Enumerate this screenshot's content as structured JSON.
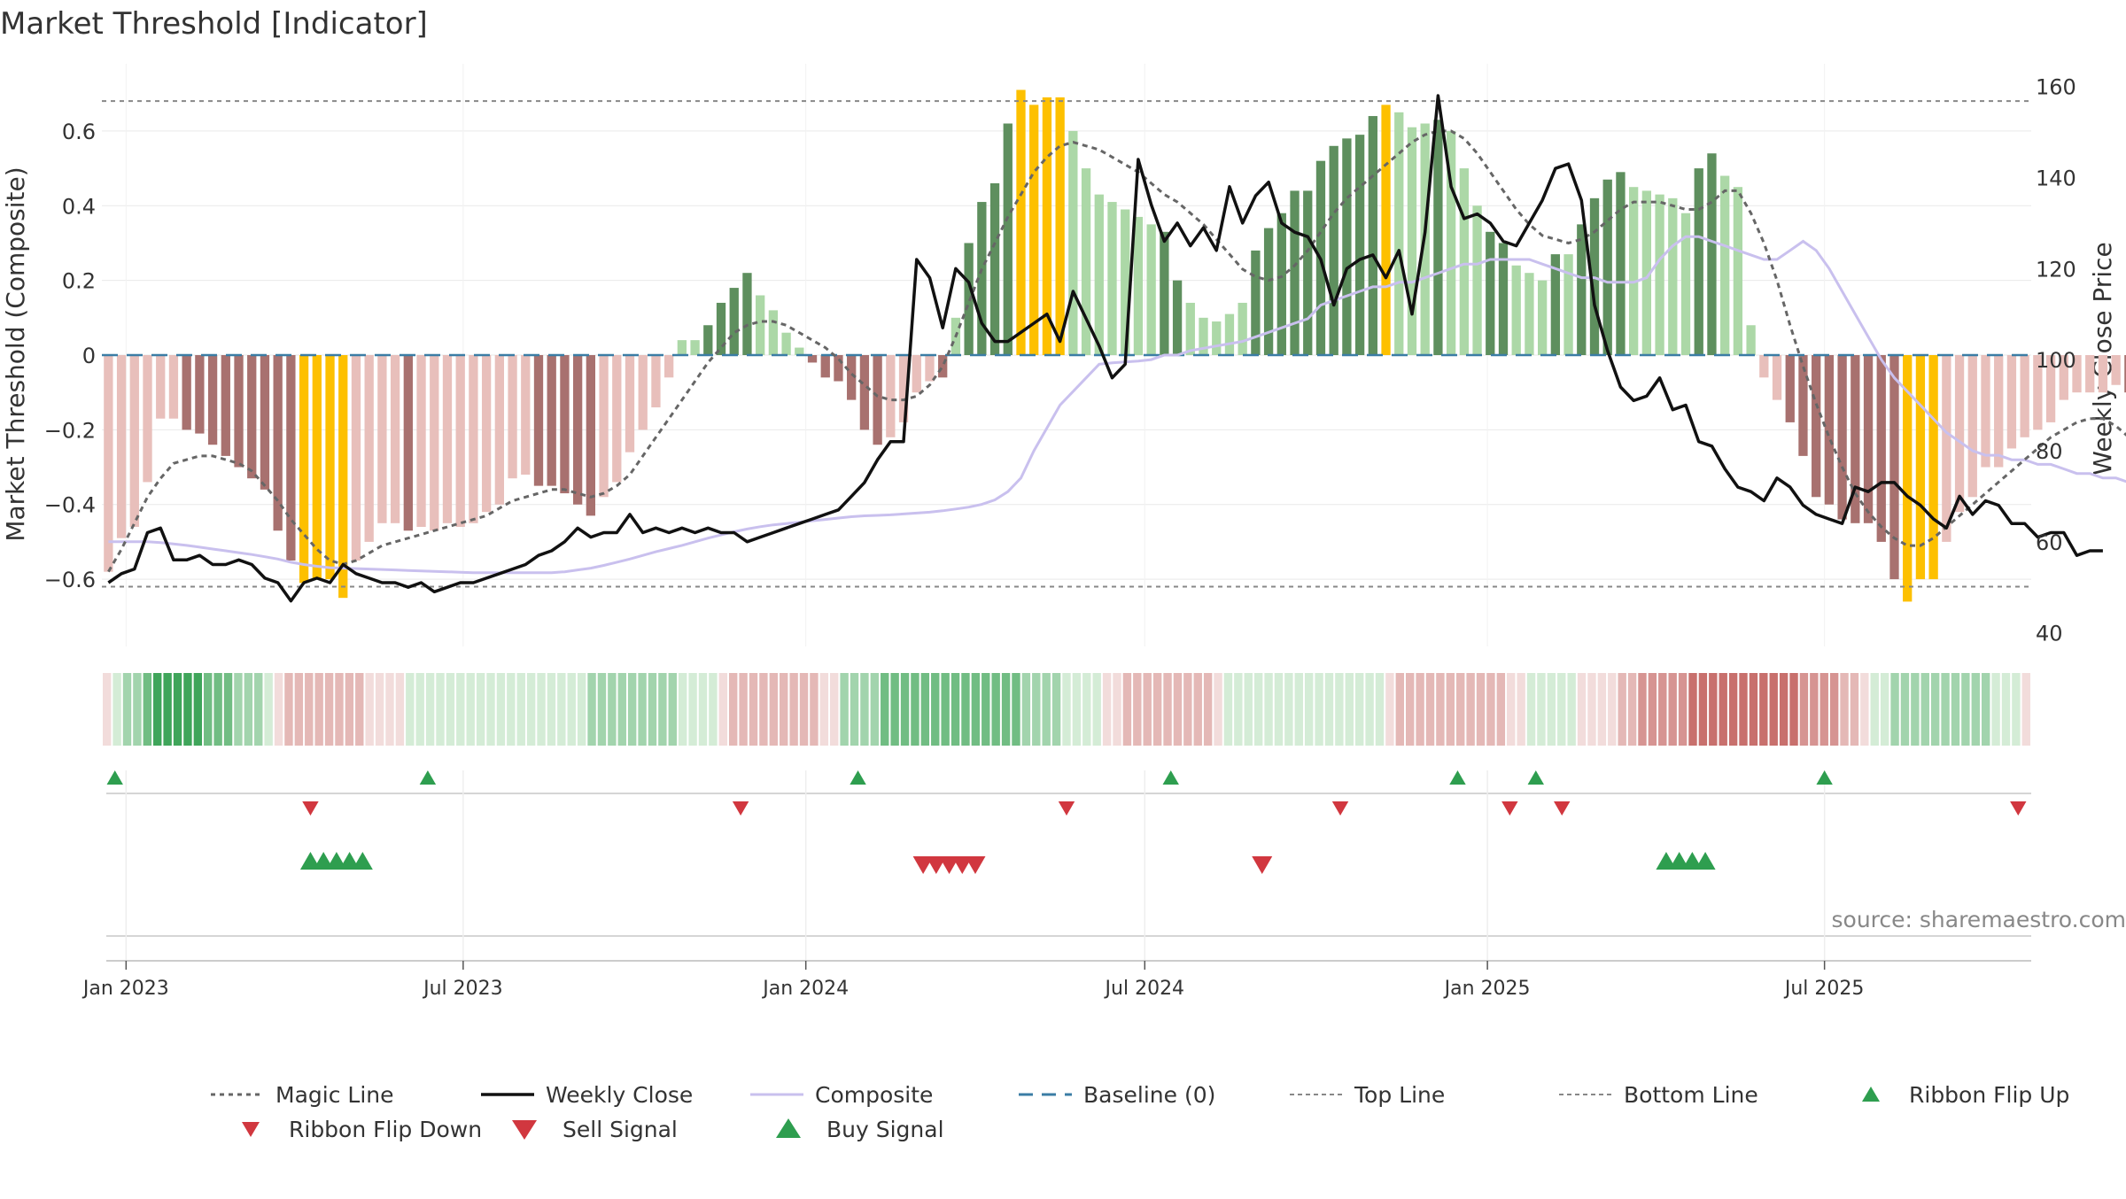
{
  "chart_data": {
    "type": "bar",
    "title": "Market Threshold [Indicator]",
    "ylabel": "Market Threshold (Composite)",
    "y2label": "Weekly Close Price",
    "source": "source: sharemaestro.com",
    "ylim": [
      -0.78,
      0.78
    ],
    "y2lim": [
      37,
      165
    ],
    "x_range": [
      "2022-12-19",
      "2025-10-20"
    ],
    "yticks": [
      {
        "v": 0.6,
        "label": "0.6"
      },
      {
        "v": 0.4,
        "label": "0.4"
      },
      {
        "v": 0.2,
        "label": "0.2"
      },
      {
        "v": 0,
        "label": "0"
      },
      {
        "v": -0.2,
        "label": "−0.2"
      },
      {
        "v": -0.4,
        "label": "−0.4"
      },
      {
        "v": -0.6,
        "label": "−0.6"
      }
    ],
    "y2ticks": [
      {
        "v": 160,
        "label": "160"
      },
      {
        "v": 140,
        "label": "140"
      },
      {
        "v": 120,
        "label": "120"
      },
      {
        "v": 100,
        "label": "100"
      },
      {
        "v": 80,
        "label": "80"
      },
      {
        "v": 60,
        "label": "60"
      },
      {
        "v": 40,
        "label": "40"
      }
    ],
    "xticks": [
      {
        "date": "2023-01-01",
        "label": "Jan 2023"
      },
      {
        "date": "2023-07-01",
        "label": "Jul 2023"
      },
      {
        "date": "2024-01-01",
        "label": "Jan 2024"
      },
      {
        "date": "2024-07-01",
        "label": "Jul 2024"
      },
      {
        "date": "2025-01-01",
        "label": "Jan 2025"
      },
      {
        "date": "2025-07-01",
        "label": "Jul 2025"
      }
    ],
    "top_line": 0.68,
    "bottom_line": -0.62,
    "baseline": 0,
    "colors": {
      "strong_positive": "#5e8f5e",
      "weak_positive": "#acd8a7",
      "strong_negative": "#a8716f",
      "weak_negative": "#e8bfbb",
      "extreme": "#fdc000",
      "weekly_close": "#111111",
      "composite": "#c9c0ee",
      "magic_line": "#666666",
      "baseline": "#3b7da5",
      "ref_line": "#888888",
      "buy": "#2e9e4f",
      "sell": "#d1373f",
      "ribbon_up": "#2e9e4f",
      "ribbon_down": "#d1373f",
      "ribbon_pos_dark": "#3fa55a",
      "ribbon_pos_light": "#d4ecd6",
      "ribbon_neg_dark": "#c8706d",
      "ribbon_neg_light": "#f2dcdb"
    },
    "bar_values": [
      -0.58,
      -0.49,
      -0.46,
      -0.34,
      -0.17,
      -0.17,
      -0.2,
      -0.21,
      -0.24,
      -0.27,
      -0.3,
      -0.33,
      -0.36,
      -0.47,
      -0.55,
      -0.61,
      -0.6,
      -0.6,
      -0.65,
      -0.55,
      -0.5,
      -0.45,
      -0.45,
      -0.47,
      -0.46,
      -0.47,
      -0.45,
      -0.46,
      -0.45,
      -0.42,
      -0.4,
      -0.33,
      -0.32,
      -0.35,
      -0.35,
      -0.37,
      -0.4,
      -0.43,
      -0.38,
      -0.34,
      -0.26,
      -0.2,
      -0.14,
      -0.06,
      0.04,
      0.04,
      0.08,
      0.14,
      0.18,
      0.22,
      0.16,
      0.12,
      0.06,
      0.02,
      -0.02,
      -0.06,
      -0.07,
      -0.12,
      -0.2,
      -0.24,
      -0.22,
      -0.18,
      -0.1,
      -0.07,
      -0.06,
      0.1,
      0.3,
      0.41,
      0.46,
      0.62,
      0.71,
      0.67,
      0.69,
      0.69,
      0.6,
      0.5,
      0.43,
      0.41,
      0.39,
      0.37,
      0.35,
      0.33,
      0.2,
      0.14,
      0.1,
      0.09,
      0.11,
      0.14,
      0.28,
      0.34,
      0.38,
      0.44,
      0.44,
      0.52,
      0.56,
      0.58,
      0.59,
      0.64,
      0.67,
      0.65,
      0.61,
      0.62,
      0.63,
      0.6,
      0.5,
      0.4,
      0.33,
      0.3,
      0.24,
      0.22,
      0.2,
      0.27,
      0.27,
      0.35,
      0.42,
      0.47,
      0.49,
      0.45,
      0.44,
      0.43,
      0.42,
      0.38,
      0.5,
      0.54,
      0.48,
      0.45,
      0.08,
      -0.06,
      -0.12,
      -0.18,
      -0.27,
      -0.38,
      -0.4,
      -0.44,
      -0.45,
      -0.45,
      -0.5,
      -0.6,
      -0.66,
      -0.6,
      -0.6,
      -0.5,
      -0.42,
      -0.38,
      -0.3,
      -0.3,
      -0.25,
      -0.22,
      -0.2,
      -0.18,
      -0.12,
      -0.1,
      -0.1,
      -0.1,
      -0.08,
      -0.1,
      -0.16,
      -0.3,
      -0.33,
      -0.37,
      -0.41,
      -0.43
    ],
    "bar_classes": [
      "w",
      "w",
      "w",
      "w",
      "w",
      "w",
      "s",
      "s",
      "s",
      "s",
      "s",
      "s",
      "s",
      "s",
      "s",
      "x",
      "x",
      "x",
      "x",
      "w",
      "w",
      "w",
      "w",
      "s",
      "w",
      "w",
      "w",
      "w",
      "w",
      "w",
      "w",
      "w",
      "w",
      "s",
      "s",
      "s",
      "s",
      "s",
      "w",
      "w",
      "w",
      "w",
      "w",
      "w",
      "w",
      "w",
      "s",
      "s",
      "s",
      "s",
      "w",
      "w",
      "w",
      "w",
      "s",
      "s",
      "s",
      "s",
      "s",
      "s",
      "w",
      "w",
      "w",
      "w",
      "s",
      "w",
      "s",
      "s",
      "s",
      "s",
      "x",
      "x",
      "x",
      "x",
      "w",
      "w",
      "w",
      "w",
      "w",
      "w",
      "w",
      "s",
      "s",
      "w",
      "w",
      "w",
      "w",
      "w",
      "s",
      "s",
      "s",
      "s",
      "s",
      "s",
      "s",
      "s",
      "s",
      "s",
      "x",
      "w",
      "w",
      "w",
      "s",
      "w",
      "w",
      "w",
      "s",
      "s",
      "w",
      "w",
      "w",
      "s",
      "w",
      "s",
      "s",
      "s",
      "s",
      "w",
      "w",
      "w",
      "w",
      "w",
      "s",
      "s",
      "w",
      "w",
      "w",
      "w",
      "w",
      "s",
      "s",
      "s",
      "s",
      "s",
      "s",
      "s",
      "s",
      "s",
      "x",
      "x",
      "x",
      "w",
      "w",
      "w",
      "w",
      "w",
      "w",
      "w",
      "w",
      "w",
      "w",
      "w",
      "w",
      "w",
      "w",
      "s",
      "s",
      "s",
      "s",
      "s"
    ],
    "weekly_close": [
      51,
      53,
      54,
      62,
      63,
      56,
      56,
      57,
      55,
      55,
      56,
      55,
      52,
      51,
      47,
      51,
      52,
      51,
      55,
      53,
      52,
      51,
      51,
      50,
      51,
      49,
      50,
      51,
      51,
      52,
      53,
      54,
      55,
      57,
      58,
      60,
      63,
      61,
      62,
      62,
      66,
      62,
      63,
      62,
      63,
      62,
      63,
      62,
      62,
      60,
      61,
      62,
      63,
      64,
      65,
      66,
      67,
      70,
      73,
      78,
      82,
      82,
      122,
      118,
      107,
      120,
      117,
      108,
      104,
      104,
      106,
      108,
      110,
      104,
      115,
      109,
      103,
      96,
      99,
      144,
      134,
      126,
      130,
      125,
      129,
      124,
      138,
      130,
      136,
      139,
      130,
      128,
      127,
      122,
      112,
      120,
      122,
      123,
      118,
      124,
      110,
      128,
      158,
      138,
      131,
      132,
      130,
      126,
      125,
      130,
      135,
      142,
      143,
      135,
      112,
      102,
      94,
      91,
      92,
      96,
      89,
      90,
      82,
      81,
      76,
      72,
      71,
      69,
      74,
      72,
      68,
      66,
      65,
      64,
      72,
      71,
      73,
      73,
      70,
      68,
      65,
      63,
      70,
      66,
      69,
      68,
      64,
      64,
      61,
      62,
      62,
      57,
      58,
      58
    ],
    "composite_line": [
      60,
      60,
      60,
      60,
      59.8,
      59.5,
      59.2,
      58.8,
      58.4,
      58,
      57.6,
      57.2,
      56.7,
      56.2,
      55.5,
      55,
      54.6,
      54.3,
      54.2,
      54.1,
      54,
      53.9,
      53.8,
      53.7,
      53.6,
      53.5,
      53.4,
      53.3,
      53.2,
      53.2,
      53.2,
      53.2,
      53.2,
      53.2,
      53.2,
      53.4,
      53.8,
      54.2,
      54.8,
      55.5,
      56.2,
      57,
      57.8,
      58.5,
      59.2,
      60,
      60.8,
      61.5,
      62.2,
      62.8,
      63.3,
      63.7,
      64,
      64.3,
      64.6,
      64.9,
      65.2,
      65.5,
      65.7,
      65.8,
      65.9,
      66.1,
      66.3,
      66.5,
      66.8,
      67.2,
      67.6,
      68.2,
      69.2,
      71,
      74,
      80,
      85,
      90,
      93,
      96,
      99,
      99.3,
      99.5,
      99.7,
      100,
      101,
      101,
      102,
      102.5,
      103,
      103.5,
      104,
      105,
      106,
      107,
      108,
      109,
      112,
      113,
      114,
      115,
      116,
      116,
      117,
      117,
      118,
      119,
      120,
      121,
      121,
      122,
      122,
      122,
      122,
      121,
      120,
      119,
      118,
      118,
      117,
      117,
      117,
      118,
      122,
      125,
      127,
      127,
      126,
      125,
      124,
      123,
      122,
      122,
      124,
      126,
      124,
      120,
      115,
      110,
      105,
      100,
      96,
      93,
      90,
      87,
      84,
      82,
      80,
      79,
      79,
      78,
      78,
      77,
      77,
      76,
      75,
      75,
      74,
      74,
      73,
      73,
      72,
      72,
      71,
      71,
      70,
      69,
      68
    ],
    "magic_line": [
      -0.58,
      -0.52,
      -0.45,
      -0.38,
      -0.33,
      -0.29,
      -0.28,
      -0.27,
      -0.27,
      -0.28,
      -0.29,
      -0.31,
      -0.35,
      -0.39,
      -0.44,
      -0.48,
      -0.52,
      -0.55,
      -0.56,
      -0.55,
      -0.53,
      -0.51,
      -0.5,
      -0.49,
      -0.48,
      -0.47,
      -0.46,
      -0.45,
      -0.44,
      -0.43,
      -0.41,
      -0.39,
      -0.38,
      -0.37,
      -0.36,
      -0.36,
      -0.37,
      -0.38,
      -0.37,
      -0.35,
      -0.32,
      -0.27,
      -0.22,
      -0.17,
      -0.12,
      -0.07,
      -0.02,
      0.02,
      0.06,
      0.08,
      0.09,
      0.09,
      0.08,
      0.06,
      0.04,
      0.02,
      -0.01,
      -0.05,
      -0.08,
      -0.11,
      -0.12,
      -0.12,
      -0.11,
      -0.08,
      -0.03,
      0.05,
      0.14,
      0.23,
      0.3,
      0.37,
      0.43,
      0.49,
      0.53,
      0.56,
      0.57,
      0.56,
      0.55,
      0.53,
      0.51,
      0.49,
      0.46,
      0.43,
      0.41,
      0.38,
      0.35,
      0.31,
      0.27,
      0.23,
      0.21,
      0.2,
      0.21,
      0.24,
      0.28,
      0.33,
      0.38,
      0.42,
      0.45,
      0.48,
      0.51,
      0.54,
      0.57,
      0.59,
      0.6,
      0.6,
      0.58,
      0.54,
      0.49,
      0.44,
      0.39,
      0.35,
      0.32,
      0.31,
      0.3,
      0.31,
      0.33,
      0.36,
      0.39,
      0.41,
      0.41,
      0.41,
      0.4,
      0.39,
      0.39,
      0.41,
      0.44,
      0.44,
      0.38,
      0.3,
      0.2,
      0.08,
      -0.03,
      -0.13,
      -0.22,
      -0.3,
      -0.37,
      -0.42,
      -0.46,
      -0.49,
      -0.51,
      -0.51,
      -0.49,
      -0.46,
      -0.43,
      -0.4,
      -0.37,
      -0.34,
      -0.31,
      -0.28,
      -0.25,
      -0.22,
      -0.2,
      -0.18,
      -0.17,
      -0.17,
      -0.19,
      -0.22,
      -0.25,
      -0.28,
      -0.3,
      -0.33
    ],
    "ribbon_values": [
      -1,
      1,
      2,
      2,
      3,
      4,
      4,
      4,
      4,
      4,
      3,
      3,
      3,
      2,
      2,
      2,
      1,
      -1,
      -2,
      -2,
      -2,
      -2,
      -2,
      -2,
      -2,
      -2,
      -1,
      -1,
      -1,
      -1,
      1,
      1,
      1,
      1,
      1,
      1,
      1,
      1,
      1,
      1,
      1,
      1,
      1,
      1,
      1,
      1,
      1,
      1,
      2,
      2,
      2,
      2,
      2,
      2,
      2,
      2,
      2,
      1,
      1,
      1,
      1,
      -1,
      -2,
      -2,
      -2,
      -2,
      -2,
      -2,
      -2,
      -2,
      -2,
      -1,
      -1,
      2,
      2,
      2,
      2,
      3,
      3,
      3,
      3,
      3,
      3,
      3,
      3,
      3,
      3,
      3,
      3,
      3,
      3,
      2,
      2,
      2,
      2,
      1,
      1,
      1,
      1,
      -1,
      -1,
      -2,
      -2,
      -2,
      -2,
      -2,
      -2,
      -2,
      -2,
      -2,
      -1,
      1,
      1,
      1,
      1,
      1,
      1,
      1,
      1,
      1,
      1,
      1,
      1,
      1,
      1,
      1,
      1,
      -1,
      -2,
      -2,
      -2,
      -2,
      -2,
      -2,
      -2,
      -2,
      -2,
      -2,
      -2,
      -1,
      -1,
      1,
      1,
      1,
      1,
      1,
      -1,
      -1,
      -1,
      -1,
      -2,
      -2,
      -3,
      -3,
      -3,
      -3,
      -3,
      -4,
      -4,
      -4,
      -4,
      -4,
      -4,
      -4,
      -4,
      -4,
      -4,
      -4,
      -3,
      -3,
      -3,
      -3,
      -2,
      -2,
      -1,
      1,
      1,
      2,
      2,
      2,
      2,
      2,
      2,
      2,
      2,
      2,
      2,
      1,
      1,
      1,
      -1
    ],
    "ribbon_flip_up_dates": [
      "2022-12-26",
      "2023-06-12",
      "2024-01-29",
      "2024-07-15",
      "2024-12-16",
      "2025-01-27",
      "2025-07-01"
    ],
    "ribbon_flip_down_dates": [
      "2023-04-10",
      "2023-11-27",
      "2024-05-20",
      "2024-10-14",
      "2025-01-13",
      "2025-02-10",
      "2025-10-13"
    ],
    "buy_signal_dates": [
      "2023-04-10",
      "2023-04-17",
      "2023-04-24",
      "2023-05-01",
      "2023-05-08",
      "2025-04-07",
      "2025-04-14",
      "2025-04-21",
      "2025-04-28"
    ],
    "sell_signal_dates": [
      "2024-03-04",
      "2024-03-11",
      "2024-03-18",
      "2024-03-25",
      "2024-04-01",
      "2024-09-02"
    ],
    "legend": [
      {
        "key": "magic",
        "label": "Magic Line"
      },
      {
        "key": "close",
        "label": "Weekly Close"
      },
      {
        "key": "composite",
        "label": "Composite"
      },
      {
        "key": "baseline",
        "label": "Baseline (0)"
      },
      {
        "key": "top",
        "label": "Top Line"
      },
      {
        "key": "bottom",
        "label": "Bottom Line"
      },
      {
        "key": "flipup",
        "label": "Ribbon Flip Up"
      },
      {
        "key": "flipdown",
        "label": "Ribbon Flip Down"
      },
      {
        "key": "sell",
        "label": "Sell Signal"
      },
      {
        "key": "buy",
        "label": "Buy Signal"
      }
    ]
  }
}
